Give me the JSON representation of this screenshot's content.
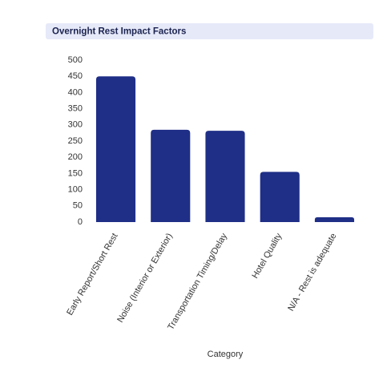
{
  "chart_data": {
    "type": "bar",
    "title": "Overnight Rest Impact Factors",
    "x_label": "Category",
    "categories": [
      "Early Report/Short Rest",
      "Noise (Interior or Exterior)",
      "Transportation Timing/Delay",
      "Hotel Quality",
      "N/A - Rest is adequate"
    ],
    "values": [
      450,
      285,
      282,
      155,
      15
    ],
    "color": "#1f2f87",
    "ylim": [
      0,
      500
    ],
    "yticks": [
      0,
      50,
      100,
      150,
      200,
      250,
      300,
      350,
      400,
      450,
      500
    ],
    "grid": false
  }
}
